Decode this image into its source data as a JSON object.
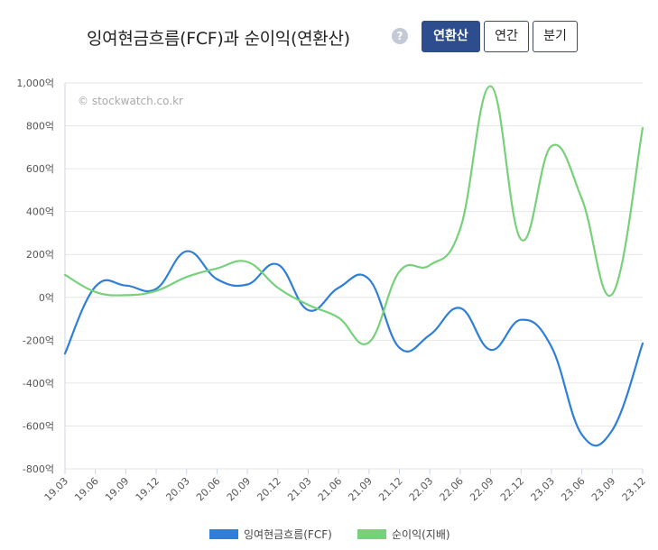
{
  "header": {
    "title": "잉여현금흐름(FCF)과 순이익(연환산)",
    "help_icon": "?",
    "period_buttons": [
      {
        "label": "연환산",
        "active": true
      },
      {
        "label": "연간",
        "active": false
      },
      {
        "label": "분기",
        "active": false
      }
    ]
  },
  "watermark": "© stockwatch.co.kr",
  "colors": {
    "fcf": "#2f7ed8",
    "net_income": "#77d17a",
    "grid": "#e6e6e6",
    "accent": "#2e4d8f"
  },
  "chart_data": {
    "type": "line",
    "categories": [
      "19.03",
      "19.06",
      "19.09",
      "19.12",
      "20.03",
      "20.06",
      "20.09",
      "20.12",
      "21.03",
      "21.06",
      "21.09",
      "21.12",
      "22.03",
      "22.06",
      "22.09",
      "22.12",
      "23.03",
      "23.06",
      "23.09",
      "23.12"
    ],
    "yticks": [
      "1,000억",
      "800억",
      "600억",
      "400억",
      "200억",
      "0억",
      "-200억",
      "-400억",
      "-600억",
      "-800억"
    ],
    "ylim": [
      -800,
      1000
    ],
    "grid": true,
    "legend_position": "bottom",
    "series": [
      {
        "name": "잉여현금흐름(FCF)",
        "color": "#2f7ed8",
        "values": [
          -262,
          50,
          55,
          40,
          215,
          85,
          60,
          153,
          -60,
          45,
          85,
          -235,
          -175,
          -50,
          -245,
          -105,
          -230,
          -640,
          -620,
          -215
        ]
      },
      {
        "name": "순이익(지배)",
        "color": "#77d17a",
        "values": [
          105,
          25,
          10,
          30,
          95,
          135,
          165,
          45,
          -35,
          -95,
          -210,
          120,
          150,
          320,
          985,
          270,
          705,
          460,
          15,
          790
        ]
      }
    ]
  }
}
